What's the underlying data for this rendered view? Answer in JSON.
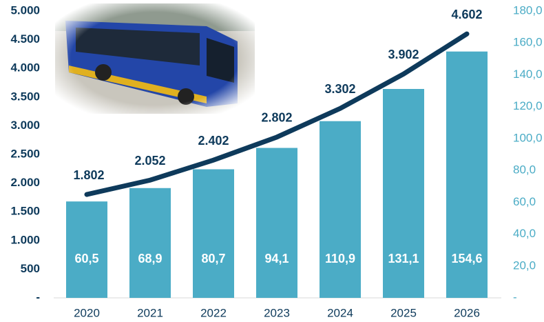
{
  "chart_data": {
    "type": "combo",
    "categories": [
      "2020",
      "2021",
      "2022",
      "2023",
      "2024",
      "2025",
      "2026"
    ],
    "series": [
      {
        "type": "bar",
        "axis": "y2",
        "color": "#4bacc6",
        "values": [
          60.5,
          68.9,
          80.7,
          94.1,
          110.9,
          131.1,
          154.6
        ],
        "value_labels": [
          "60,5",
          "68,9",
          "80,7",
          "94,1",
          "110,9",
          "131,1",
          "154,6"
        ]
      },
      {
        "type": "line",
        "color": "#0e3a5b",
        "values": [
          1802,
          2052,
          2402,
          2802,
          3302,
          3902,
          4602
        ],
        "value_labels": [
          "1.802",
          "2.052",
          "2.402",
          "2.802",
          "3.302",
          "3.902",
          "4.602"
        ]
      }
    ],
    "ylim": [
      0,
      5000
    ],
    "yticks": [
      {
        "value": 0,
        "label": "-"
      },
      500,
      {
        "value": 1000,
        "label": "1.000"
      },
      {
        "value": 1500,
        "label": "1.500"
      },
      {
        "value": 2000,
        "label": "2.000"
      },
      {
        "value": 2500,
        "label": "2.500"
      },
      {
        "value": 3000,
        "label": "3.000"
      },
      {
        "value": 3500,
        "label": "3.500"
      },
      {
        "value": 4000,
        "label": "4.000"
      },
      {
        "value": 4500,
        "label": "4.500"
      },
      {
        "value": 5000,
        "label": "5.000"
      }
    ],
    "y2lim": [
      0,
      180
    ],
    "y2ticks": [
      {
        "value": 0,
        "label": "-"
      },
      {
        "value": 20,
        "label": "20,0"
      },
      {
        "value": 40,
        "label": "40,0"
      },
      {
        "value": 60,
        "label": "60,0"
      },
      {
        "value": 80,
        "label": "80,0"
      },
      {
        "value": 100,
        "label": "100,0"
      },
      {
        "value": 120,
        "label": "120,0"
      },
      {
        "value": 140,
        "label": "140,0"
      },
      {
        "value": 160,
        "label": "160,0"
      },
      {
        "value": 180,
        "label": "180,0"
      }
    ]
  }
}
